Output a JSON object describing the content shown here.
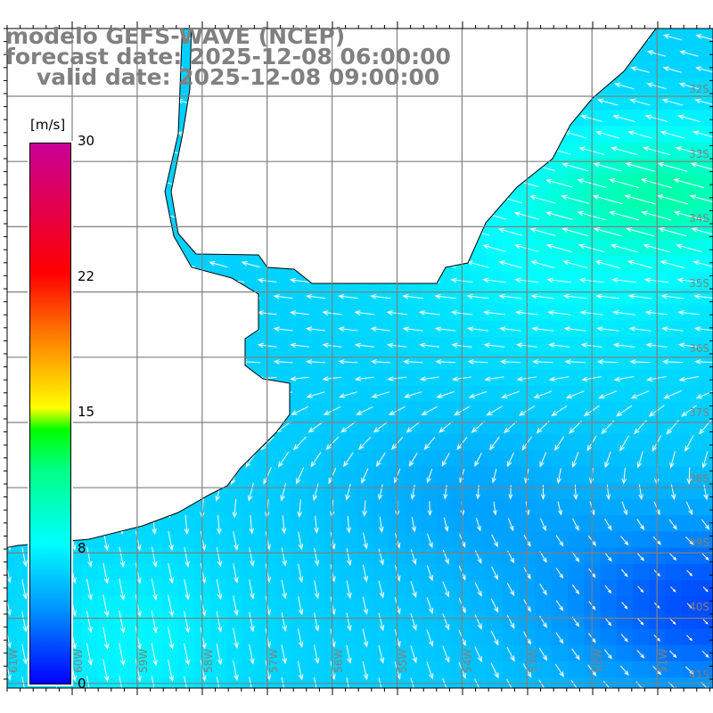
{
  "title": {
    "line1": "modelo GEFS-WAVE (NCEP)",
    "line2": "forecast date: 2025-12-08 06:00:00",
    "line3": "valid date: 2025-12-08 09:00:00"
  },
  "colorbar": {
    "unit": "[m/s]",
    "labels": [
      "30",
      "22",
      "15",
      "8",
      "0"
    ],
    "range": [
      0,
      30
    ]
  },
  "lat_labels": [
    "32S",
    "33S",
    "34S",
    "35S",
    "36S",
    "37S",
    "38S",
    "39S",
    "40S",
    "41S"
  ],
  "lon_labels": [
    "61W",
    "60W",
    "59W",
    "58W",
    "57W",
    "56W",
    "55W",
    "54W",
    "53W",
    "52W",
    "51W"
  ],
  "colors": {
    "grid": "#808080",
    "coast": "#000000",
    "land": "#ffffff",
    "arrow": "#ffffff"
  }
}
